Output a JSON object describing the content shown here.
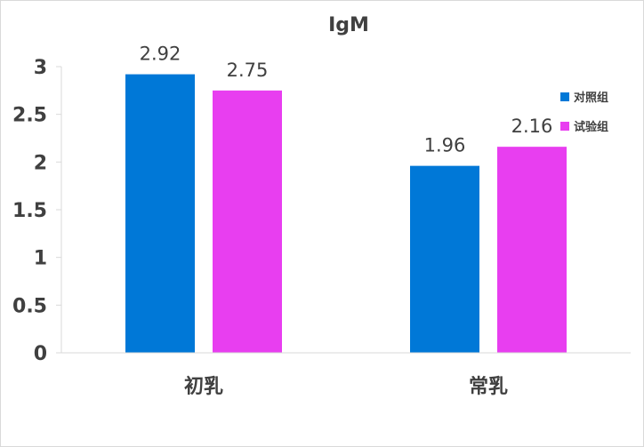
{
  "chart_data": {
    "type": "bar",
    "title": "IgM",
    "categories": [
      "初乳",
      "常乳"
    ],
    "series": [
      {
        "name": "对照组",
        "values": [
          2.92,
          1.96
        ],
        "color": "#0078D7"
      },
      {
        "name": "试验组",
        "values": [
          2.75,
          2.16
        ],
        "color": "#E83EF0"
      }
    ],
    "ylim": [
      0,
      3
    ],
    "yticks": [
      "0",
      "0.5",
      "1",
      "1.5",
      "2",
      "2.5",
      "3"
    ],
    "data_labels": [
      [
        "2.92",
        "1.96"
      ],
      [
        "2.75",
        "2.16"
      ]
    ],
    "grid": false,
    "legend_position": "right"
  }
}
